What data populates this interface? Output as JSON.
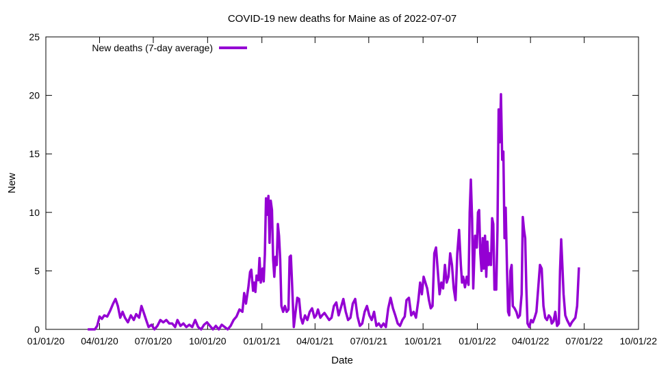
{
  "chart_data": {
    "type": "line",
    "title": "COVID-19 new deaths for Maine as of 2022-07-07",
    "xlabel": "Date",
    "ylabel": "New",
    "xlim": [
      "2020-01-01",
      "2022-10-01"
    ],
    "ylim": [
      0,
      25
    ],
    "x_ticks": [
      "01/01/20",
      "04/01/20",
      "07/01/20",
      "10/01/20",
      "01/01/21",
      "04/01/21",
      "07/01/21",
      "10/01/21",
      "01/01/22",
      "04/01/22",
      "07/01/22",
      "10/01/22"
    ],
    "y_ticks": [
      "0",
      "5",
      "10",
      "15",
      "20",
      "25"
    ],
    "legend_position": "top-left",
    "grid": false,
    "series_color": "#9400d3",
    "series": [
      {
        "name": "New deaths (7-day average)",
        "points": [
          [
            "2020-03-12",
            0.0
          ],
          [
            "2020-03-24",
            0.0
          ],
          [
            "2020-03-28",
            0.3
          ],
          [
            "2020-04-01",
            1.1
          ],
          [
            "2020-04-05",
            0.9
          ],
          [
            "2020-04-09",
            1.2
          ],
          [
            "2020-04-14",
            1.1
          ],
          [
            "2020-04-19",
            1.6
          ],
          [
            "2020-04-24",
            2.2
          ],
          [
            "2020-04-28",
            2.6
          ],
          [
            "2020-05-02",
            2.0
          ],
          [
            "2020-05-06",
            1.0
          ],
          [
            "2020-05-10",
            1.5
          ],
          [
            "2020-05-14",
            1.0
          ],
          [
            "2020-05-19",
            0.6
          ],
          [
            "2020-05-24",
            1.2
          ],
          [
            "2020-05-29",
            0.8
          ],
          [
            "2020-06-02",
            1.3
          ],
          [
            "2020-06-07",
            1.0
          ],
          [
            "2020-06-11",
            2.0
          ],
          [
            "2020-06-15",
            1.4
          ],
          [
            "2020-06-19",
            0.8
          ],
          [
            "2020-06-23",
            0.2
          ],
          [
            "2020-06-28",
            0.4
          ],
          [
            "2020-07-03",
            0.0
          ],
          [
            "2020-07-08",
            0.3
          ],
          [
            "2020-07-13",
            0.8
          ],
          [
            "2020-07-18",
            0.6
          ],
          [
            "2020-07-23",
            0.8
          ],
          [
            "2020-07-28",
            0.5
          ],
          [
            "2020-08-02",
            0.5
          ],
          [
            "2020-08-07",
            0.2
          ],
          [
            "2020-08-11",
            0.8
          ],
          [
            "2020-08-16",
            0.3
          ],
          [
            "2020-08-21",
            0.5
          ],
          [
            "2020-08-26",
            0.2
          ],
          [
            "2020-08-31",
            0.4
          ],
          [
            "2020-09-05",
            0.2
          ],
          [
            "2020-09-10",
            0.8
          ],
          [
            "2020-09-15",
            0.2
          ],
          [
            "2020-09-20",
            0.0
          ],
          [
            "2020-09-25",
            0.4
          ],
          [
            "2020-09-30",
            0.6
          ],
          [
            "2020-10-05",
            0.3
          ],
          [
            "2020-10-10",
            0.0
          ],
          [
            "2020-10-15",
            0.3
          ],
          [
            "2020-10-20",
            0.0
          ],
          [
            "2020-10-25",
            0.4
          ],
          [
            "2020-10-30",
            0.2
          ],
          [
            "2020-11-04",
            0.0
          ],
          [
            "2020-11-09",
            0.3
          ],
          [
            "2020-11-14",
            0.8
          ],
          [
            "2020-11-19",
            1.1
          ],
          [
            "2020-11-24",
            1.7
          ],
          [
            "2020-11-29",
            1.5
          ],
          [
            "2020-12-02",
            3.1
          ],
          [
            "2020-12-05",
            2.2
          ],
          [
            "2020-12-09",
            3.6
          ],
          [
            "2020-12-12",
            4.9
          ],
          [
            "2020-12-14",
            5.1
          ],
          [
            "2020-12-17",
            3.3
          ],
          [
            "2020-12-19",
            4.0
          ],
          [
            "2020-12-21",
            3.2
          ],
          [
            "2020-12-23",
            4.6
          ],
          [
            "2020-12-26",
            4.2
          ],
          [
            "2020-12-28",
            6.1
          ],
          [
            "2020-12-30",
            4.0
          ],
          [
            "2021-01-02",
            5.2
          ],
          [
            "2021-01-04",
            4.1
          ],
          [
            "2021-01-06",
            6.4
          ],
          [
            "2021-01-08",
            11.2
          ],
          [
            "2021-01-10",
            9.8
          ],
          [
            "2021-01-12",
            11.4
          ],
          [
            "2021-01-14",
            7.4
          ],
          [
            "2021-01-16",
            11.0
          ],
          [
            "2021-01-18",
            10.2
          ],
          [
            "2021-01-20",
            6.0
          ],
          [
            "2021-01-22",
            4.5
          ],
          [
            "2021-01-24",
            6.2
          ],
          [
            "2021-01-26",
            5.5
          ],
          [
            "2021-01-28",
            9.0
          ],
          [
            "2021-01-30",
            8.0
          ],
          [
            "2021-02-01",
            6.0
          ],
          [
            "2021-02-03",
            2.0
          ],
          [
            "2021-02-06",
            1.5
          ],
          [
            "2021-02-09",
            2.0
          ],
          [
            "2021-02-12",
            1.5
          ],
          [
            "2021-02-15",
            1.7
          ],
          [
            "2021-02-17",
            6.2
          ],
          [
            "2021-02-19",
            6.3
          ],
          [
            "2021-02-21",
            4.0
          ],
          [
            "2021-02-24",
            0.2
          ],
          [
            "2021-02-27",
            1.5
          ],
          [
            "2021-03-02",
            2.7
          ],
          [
            "2021-03-05",
            2.6
          ],
          [
            "2021-03-08",
            1.0
          ],
          [
            "2021-03-11",
            0.5
          ],
          [
            "2021-03-15",
            1.2
          ],
          [
            "2021-03-19",
            0.8
          ],
          [
            "2021-03-23",
            1.5
          ],
          [
            "2021-03-27",
            1.8
          ],
          [
            "2021-03-31",
            1.0
          ],
          [
            "2021-04-03",
            1.2
          ],
          [
            "2021-04-06",
            1.7
          ],
          [
            "2021-04-10",
            1.0
          ],
          [
            "2021-04-13",
            1.2
          ],
          [
            "2021-04-17",
            1.4
          ],
          [
            "2021-04-21",
            1.1
          ],
          [
            "2021-04-25",
            0.8
          ],
          [
            "2021-04-29",
            1.0
          ],
          [
            "2021-05-03",
            2.0
          ],
          [
            "2021-05-07",
            2.3
          ],
          [
            "2021-05-11",
            1.2
          ],
          [
            "2021-05-15",
            1.9
          ],
          [
            "2021-05-19",
            2.6
          ],
          [
            "2021-05-23",
            1.5
          ],
          [
            "2021-05-27",
            0.8
          ],
          [
            "2021-05-31",
            1.0
          ],
          [
            "2021-06-04",
            2.2
          ],
          [
            "2021-06-08",
            2.6
          ],
          [
            "2021-06-12",
            1.1
          ],
          [
            "2021-06-16",
            0.3
          ],
          [
            "2021-06-20",
            0.5
          ],
          [
            "2021-06-24",
            1.5
          ],
          [
            "2021-06-28",
            2.0
          ],
          [
            "2021-07-02",
            1.2
          ],
          [
            "2021-07-06",
            0.8
          ],
          [
            "2021-07-10",
            1.5
          ],
          [
            "2021-07-14",
            0.3
          ],
          [
            "2021-07-18",
            0.5
          ],
          [
            "2021-07-22",
            0.2
          ],
          [
            "2021-07-26",
            0.5
          ],
          [
            "2021-07-30",
            0.2
          ],
          [
            "2021-08-03",
            1.8
          ],
          [
            "2021-08-07",
            2.7
          ],
          [
            "2021-08-11",
            1.8
          ],
          [
            "2021-08-15",
            1.2
          ],
          [
            "2021-08-19",
            0.5
          ],
          [
            "2021-08-23",
            0.3
          ],
          [
            "2021-08-27",
            0.8
          ],
          [
            "2021-08-31",
            1.1
          ],
          [
            "2021-09-03",
            2.5
          ],
          [
            "2021-09-07",
            2.7
          ],
          [
            "2021-09-11",
            1.2
          ],
          [
            "2021-09-15",
            1.5
          ],
          [
            "2021-09-19",
            1.0
          ],
          [
            "2021-09-23",
            2.5
          ],
          [
            "2021-09-26",
            4.0
          ],
          [
            "2021-09-29",
            3.0
          ],
          [
            "2021-10-02",
            4.5
          ],
          [
            "2021-10-05",
            4.0
          ],
          [
            "2021-10-08",
            3.5
          ],
          [
            "2021-10-11",
            2.5
          ],
          [
            "2021-10-14",
            1.8
          ],
          [
            "2021-10-17",
            2.0
          ],
          [
            "2021-10-20",
            6.5
          ],
          [
            "2021-10-23",
            7.0
          ],
          [
            "2021-10-26",
            5.0
          ],
          [
            "2021-10-29",
            3.0
          ],
          [
            "2021-11-01",
            4.0
          ],
          [
            "2021-11-04",
            3.5
          ],
          [
            "2021-11-07",
            5.5
          ],
          [
            "2021-11-10",
            4.0
          ],
          [
            "2021-11-13",
            4.5
          ],
          [
            "2021-11-16",
            6.5
          ],
          [
            "2021-11-19",
            5.5
          ],
          [
            "2021-11-22",
            3.5
          ],
          [
            "2021-11-25",
            2.5
          ],
          [
            "2021-11-28",
            6.5
          ],
          [
            "2021-12-01",
            8.5
          ],
          [
            "2021-12-04",
            5.5
          ],
          [
            "2021-12-06",
            4.0
          ],
          [
            "2021-12-08",
            4.5
          ],
          [
            "2021-12-11",
            3.6
          ],
          [
            "2021-12-14",
            4.5
          ],
          [
            "2021-12-17",
            3.8
          ],
          [
            "2021-12-19",
            10.0
          ],
          [
            "2021-12-21",
            12.8
          ],
          [
            "2021-12-23",
            9.5
          ],
          [
            "2021-12-25",
            3.5
          ],
          [
            "2021-12-28",
            8.0
          ],
          [
            "2021-12-31",
            7.0
          ],
          [
            "2022-01-02",
            10.0
          ],
          [
            "2022-01-04",
            10.2
          ],
          [
            "2022-01-06",
            6.5
          ],
          [
            "2022-01-08",
            5.0
          ],
          [
            "2022-01-10",
            7.8
          ],
          [
            "2022-01-12",
            5.2
          ],
          [
            "2022-01-14",
            8.0
          ],
          [
            "2022-01-16",
            4.5
          ],
          [
            "2022-01-18",
            7.5
          ],
          [
            "2022-01-20",
            5.5
          ],
          [
            "2022-01-22",
            6.5
          ],
          [
            "2022-01-24",
            5.5
          ],
          [
            "2022-01-26",
            9.5
          ],
          [
            "2022-01-28",
            9.0
          ],
          [
            "2022-01-30",
            3.4
          ],
          [
            "2022-02-02",
            3.4
          ],
          [
            "2022-02-04",
            8.5
          ],
          [
            "2022-02-06",
            18.8
          ],
          [
            "2022-02-08",
            16.0
          ],
          [
            "2022-02-10",
            20.1
          ],
          [
            "2022-02-12",
            14.5
          ],
          [
            "2022-02-14",
            15.2
          ],
          [
            "2022-02-16",
            7.8
          ],
          [
            "2022-02-18",
            10.4
          ],
          [
            "2022-02-20",
            5.5
          ],
          [
            "2022-02-22",
            1.5
          ],
          [
            "2022-02-24",
            1.2
          ],
          [
            "2022-02-26",
            5.0
          ],
          [
            "2022-02-28",
            5.5
          ],
          [
            "2022-03-02",
            2.0
          ],
          [
            "2022-03-05",
            1.8
          ],
          [
            "2022-03-08",
            1.5
          ],
          [
            "2022-03-11",
            1.0
          ],
          [
            "2022-03-14",
            1.2
          ],
          [
            "2022-03-17",
            3.0
          ],
          [
            "2022-03-19",
            9.6
          ],
          [
            "2022-03-21",
            8.5
          ],
          [
            "2022-03-23",
            7.8
          ],
          [
            "2022-03-25",
            3.5
          ],
          [
            "2022-03-27",
            0.5
          ],
          [
            "2022-03-30",
            0.2
          ],
          [
            "2022-04-02",
            0.8
          ],
          [
            "2022-04-05",
            0.6
          ],
          [
            "2022-04-08",
            1.0
          ],
          [
            "2022-04-11",
            1.5
          ],
          [
            "2022-04-14",
            3.5
          ],
          [
            "2022-04-17",
            5.5
          ],
          [
            "2022-04-20",
            5.2
          ],
          [
            "2022-04-23",
            2.0
          ],
          [
            "2022-04-26",
            1.0
          ],
          [
            "2022-04-29",
            0.8
          ],
          [
            "2022-05-02",
            1.2
          ],
          [
            "2022-05-05",
            1.0
          ],
          [
            "2022-05-07",
            0.5
          ],
          [
            "2022-05-10",
            0.7
          ],
          [
            "2022-05-13",
            1.5
          ],
          [
            "2022-05-16",
            0.3
          ],
          [
            "2022-05-19",
            0.5
          ],
          [
            "2022-05-21",
            5.0
          ],
          [
            "2022-05-23",
            7.7
          ],
          [
            "2022-05-25",
            5.5
          ],
          [
            "2022-05-27",
            3.0
          ],
          [
            "2022-05-30",
            1.2
          ],
          [
            "2022-06-02",
            0.8
          ],
          [
            "2022-06-05",
            0.5
          ],
          [
            "2022-06-07",
            0.3
          ],
          [
            "2022-06-10",
            0.6
          ],
          [
            "2022-06-13",
            0.8
          ],
          [
            "2022-06-16",
            1.0
          ],
          [
            "2022-06-19",
            2.0
          ],
          [
            "2022-06-22",
            5.3
          ]
        ]
      }
    ]
  }
}
